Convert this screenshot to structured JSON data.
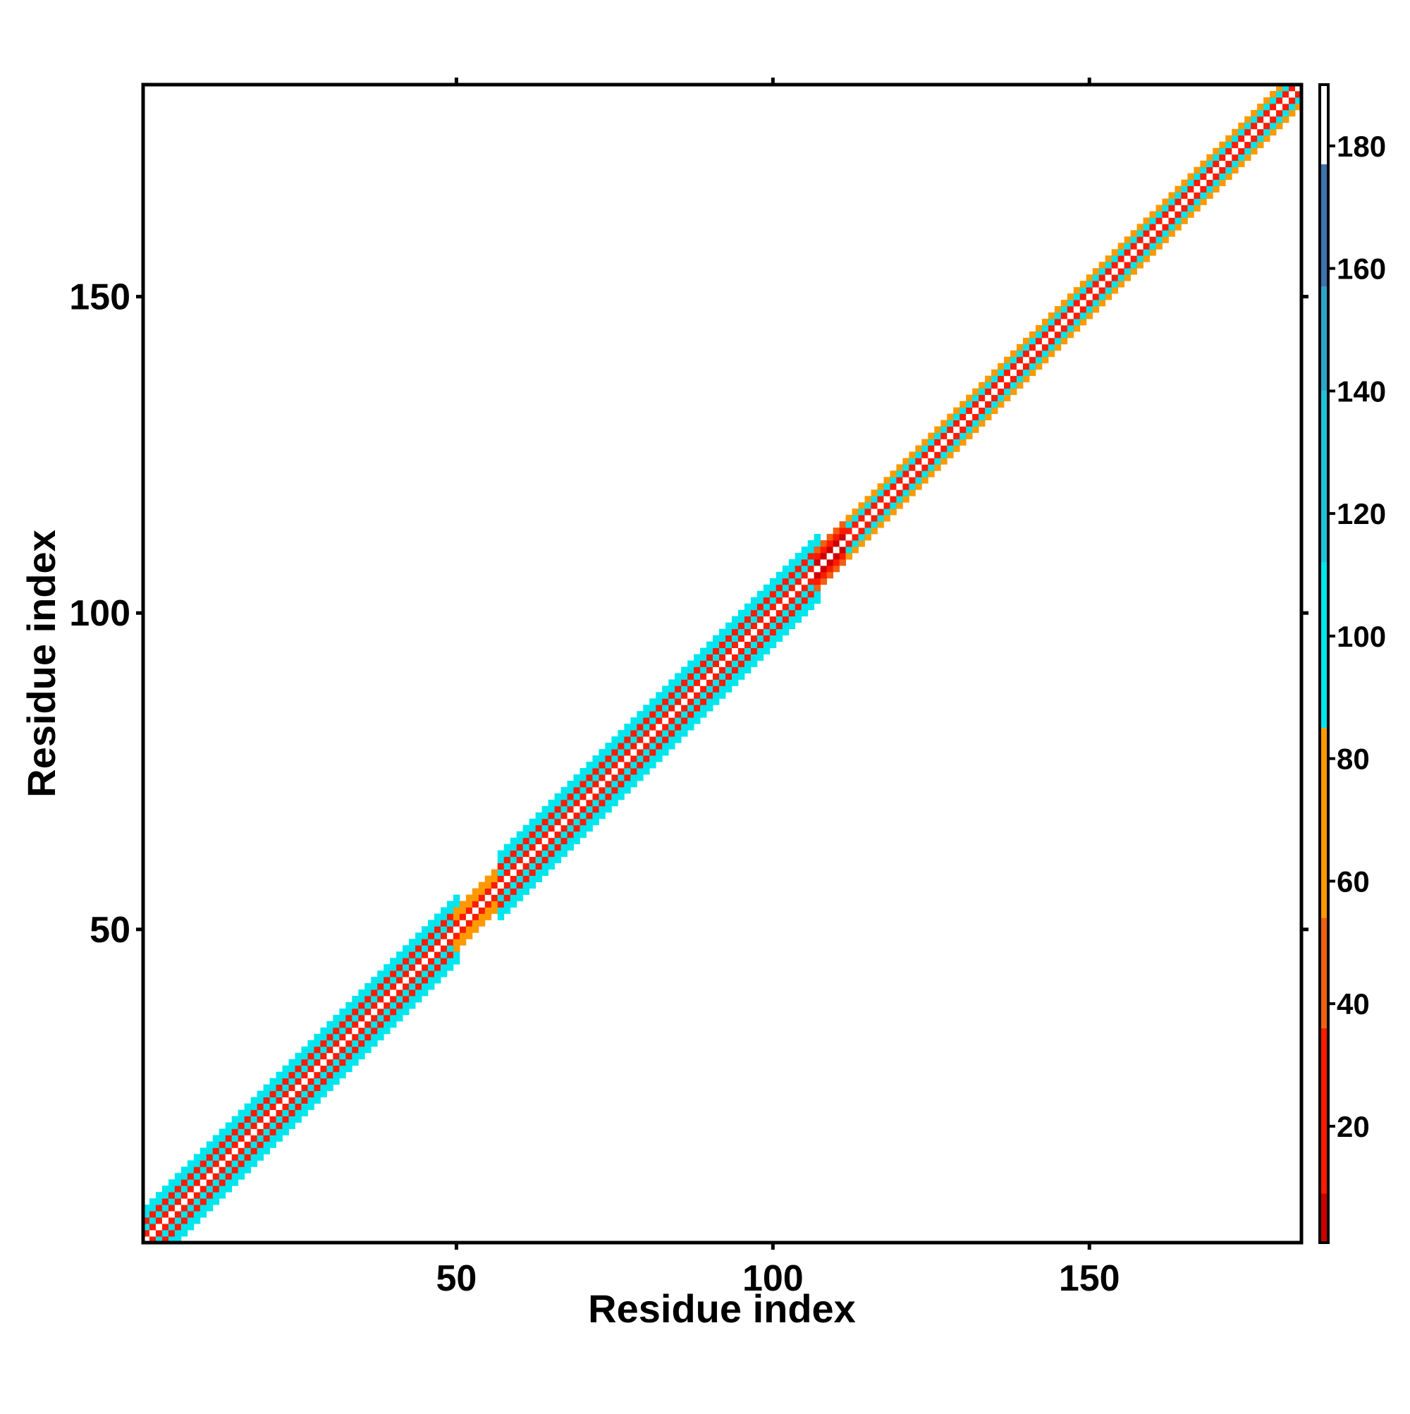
{
  "chart_data": {
    "type": "heatmap",
    "title": "",
    "xlabel": "Residue index",
    "ylabel": "Residue index",
    "xlim": [
      1,
      183
    ],
    "ylim": [
      1,
      183
    ],
    "x_ticks": [
      50,
      100,
      150
    ],
    "y_ticks": [
      50,
      100,
      150
    ],
    "colorbar": {
      "range": [
        1,
        190
      ],
      "ticks": [
        20,
        40,
        60,
        80,
        100,
        120,
        140,
        160,
        180
      ],
      "segments": [
        {
          "from": 1,
          "to": 9,
          "color": "#cc0000"
        },
        {
          "from": 9,
          "to": 36,
          "color": "#ff1a00"
        },
        {
          "from": 36,
          "to": 54,
          "color": "#f06010"
        },
        {
          "from": 54,
          "to": 85,
          "color": "#ff9900"
        },
        {
          "from": 85,
          "to": 112,
          "color": "#00e5ee"
        },
        {
          "from": 112,
          "to": 140,
          "color": "#1fc3d8"
        },
        {
          "from": 140,
          "to": 157,
          "color": "#2ba6cb"
        },
        {
          "from": 157,
          "to": 177,
          "color": "#3d74ad"
        },
        {
          "from": 177,
          "to": 190,
          "color": "#ffffff"
        }
      ]
    },
    "band_regions": [
      {
        "from": 1,
        "to": 50,
        "type": "helix",
        "halfwidth": 5,
        "offset_values": [
          185,
          10,
          112,
          10,
          95,
          95
        ]
      },
      {
        "from": 50,
        "to": 57,
        "type": "loop",
        "halfwidth": 3,
        "offset_values": [
          185,
          12,
          60,
          55
        ]
      },
      {
        "from": 57,
        "to": 107,
        "type": "helix",
        "halfwidth": 5,
        "offset_values": [
          185,
          10,
          112,
          10,
          95,
          95
        ]
      },
      {
        "from": 107,
        "to": 112,
        "type": "loop",
        "halfwidth": 3,
        "offset_values": [
          185,
          5,
          20,
          40
        ]
      },
      {
        "from": 112,
        "to": 183,
        "type": "mixed",
        "halfwidth": 3,
        "offset_values": [
          185,
          20,
          112,
          60
        ]
      }
    ],
    "grid": false,
    "legend": "colorbar-right"
  }
}
